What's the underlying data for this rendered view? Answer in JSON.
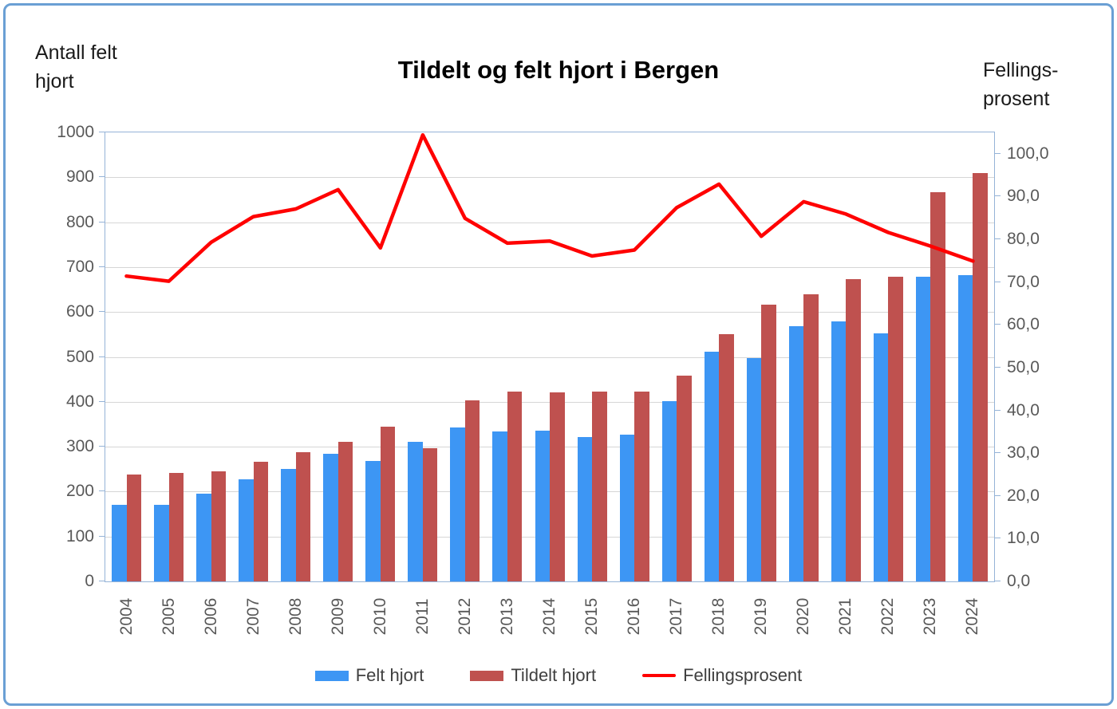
{
  "title": "Tildelt og felt hjort i Bergen",
  "left_axis": {
    "title_line1": "Antall felt",
    "title_line2": "hjort",
    "tick_labels": [
      "0",
      "100",
      "200",
      "300",
      "400",
      "500",
      "600",
      "700",
      "800",
      "900",
      "1000"
    ]
  },
  "right_axis": {
    "title_line1": "Fellings-",
    "title_line2": "prosent",
    "tick_labels": [
      "0,0",
      "10,0",
      "20,0",
      "30,0",
      "40,0",
      "50,0",
      "60,0",
      "70,0",
      "80,0",
      "90,0",
      "100,0"
    ]
  },
  "colors": {
    "felt_bar": "#3d96f4",
    "tildelt_bar": "#bf514f",
    "percent_line": "#ff0000",
    "gridline": "#d6d6d6",
    "plot_border": "#95b3d7",
    "tick_text": "#595959",
    "legend_text": "#3f3f3f",
    "frame_border": "#6a9fd4"
  },
  "chart_data": {
    "type": "bar+line",
    "title": "Tildelt og felt hjort i Bergen",
    "categories": [
      "2004",
      "2005",
      "2006",
      "2007",
      "2008",
      "2009",
      "2010",
      "2011",
      "2012",
      "2013",
      "2014",
      "2015",
      "2016",
      "2017",
      "2018",
      "2019",
      "2020",
      "2021",
      "2022",
      "2023",
      "2024"
    ],
    "series": [
      {
        "name": "Felt hjort",
        "type": "bar",
        "axis": "left",
        "color": "#3d96f4",
        "values": [
          170,
          170,
          195,
          227,
          250,
          284,
          269,
          310,
          343,
          334,
          335,
          321,
          327,
          401,
          512,
          497,
          568,
          579,
          553,
          679,
          682
        ]
      },
      {
        "name": "Tildelt hjort",
        "type": "bar",
        "axis": "left",
        "color": "#bf514f",
        "values": [
          238,
          242,
          246,
          266,
          287,
          310,
          345,
          297,
          404,
          422,
          421,
          422,
          422,
          459,
          551,
          616,
          640,
          674,
          678,
          866,
          910
        ]
      },
      {
        "name": "Fellingsprosent",
        "type": "line",
        "axis": "right",
        "color": "#ff0000",
        "values": [
          71.4,
          70.2,
          79.3,
          85.3,
          87.1,
          91.6,
          78.0,
          104.4,
          84.9,
          79.1,
          79.6,
          76.1,
          77.5,
          87.4,
          92.9,
          80.7,
          88.8,
          85.9,
          81.6,
          78.4,
          74.9
        ]
      }
    ],
    "left_ylabel": "Antall felt hjort",
    "right_ylabel": "Fellingsprosent",
    "left_ylim": [
      0,
      1000
    ],
    "right_ylim": [
      0,
      105
    ],
    "left_tick_step": 100,
    "right_tick_step": 10,
    "grid": true,
    "legend_position": "bottom"
  }
}
